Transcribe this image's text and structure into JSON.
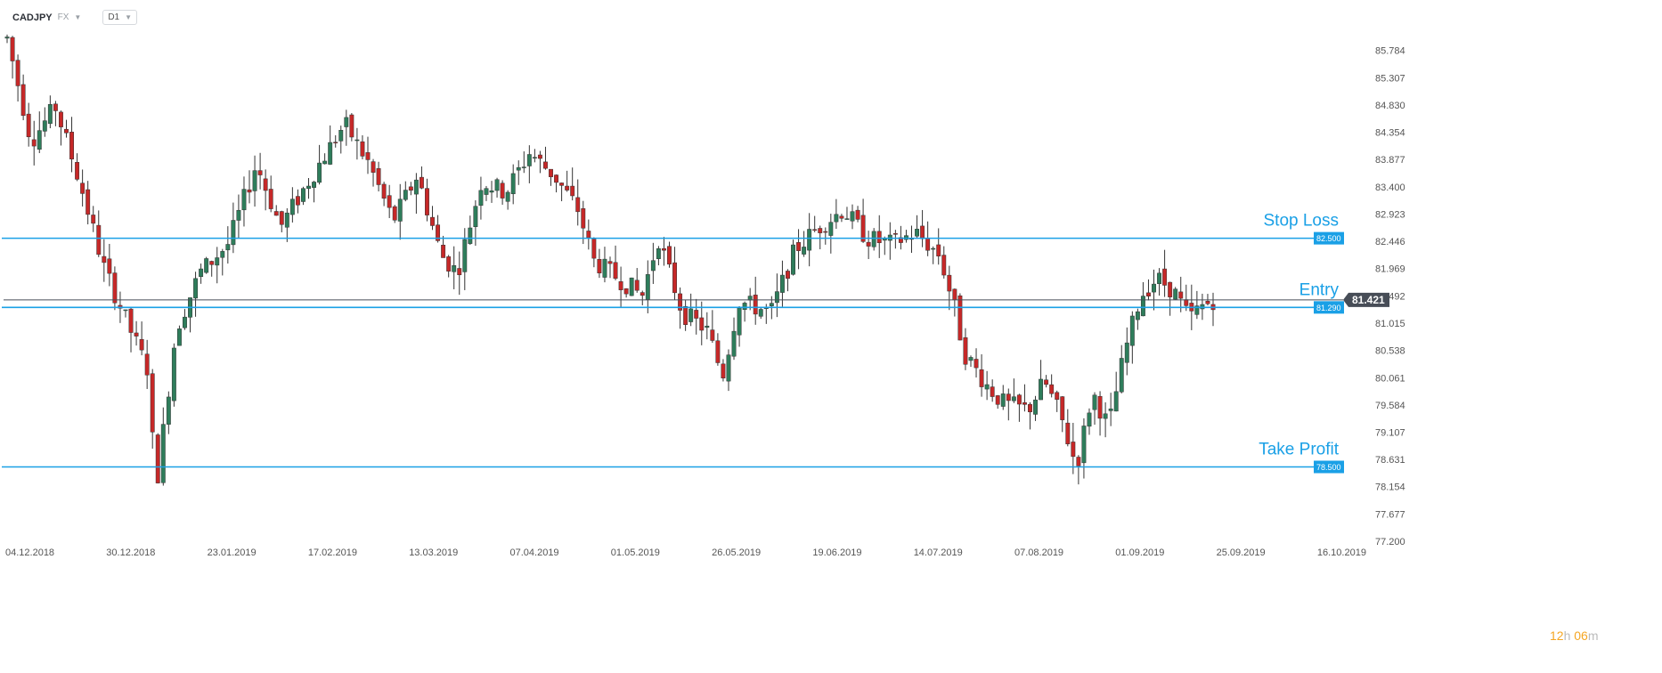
{
  "header": {
    "symbol": "CADJPY",
    "market": "FX",
    "timeframe": "D1"
  },
  "countdown": {
    "hours": "12",
    "hours_unit": "h",
    "minutes": "06",
    "minutes_unit": "m"
  },
  "colors": {
    "bull": "#2e7d5b",
    "bear": "#c62828",
    "level_line": "#1aa0e6",
    "price_tag": "#474d57",
    "axis_text": "#555555"
  },
  "chart_data": {
    "type": "candlestick",
    "title": "",
    "ylim": [
      77.2,
      86.2
    ],
    "y_ticks": [
      "85.784",
      "85.307",
      "84.830",
      "84.354",
      "83.877",
      "83.400",
      "82.923",
      "82.446",
      "81.969",
      "81.492",
      "81.015",
      "80.538",
      "80.061",
      "79.584",
      "79.107",
      "78.631",
      "78.154",
      "77.677",
      "77.200"
    ],
    "x_ticks": [
      "04.12.2018",
      "30.12.2018",
      "23.01.2019",
      "17.02.2019",
      "13.03.2019",
      "07.04.2019",
      "01.05.2019",
      "26.05.2019",
      "19.06.2019",
      "14.07.2019",
      "07.08.2019",
      "01.09.2019",
      "25.09.2019",
      "16.10.2019"
    ],
    "current_price": "81.421",
    "levels": [
      {
        "label": "Stop Loss",
        "price": 82.5,
        "tag": "82.500"
      },
      {
        "label": "Entry",
        "price": 81.29,
        "tag": "81.290"
      },
      {
        "label": "Take Profit",
        "price": 78.5,
        "tag": "78.500"
      }
    ],
    "x_range": [
      "04.12.2018",
      "16.10.2019"
    ],
    "candle_count": 225,
    "price_path": [
      [
        0,
        86.0
      ],
      [
        6,
        84.2
      ],
      [
        12,
        84.8
      ],
      [
        18,
        83.5
      ],
      [
        24,
        82.0
      ],
      [
        30,
        81.0
      ],
      [
        35,
        80.2
      ],
      [
        37,
        78.1
      ],
      [
        42,
        80.9
      ],
      [
        48,
        81.9
      ],
      [
        55,
        82.4
      ],
      [
        62,
        83.8
      ],
      [
        68,
        82.7
      ],
      [
        75,
        83.5
      ],
      [
        84,
        84.5
      ],
      [
        90,
        83.8
      ],
      [
        96,
        82.8
      ],
      [
        102,
        83.6
      ],
      [
        108,
        82.2
      ],
      [
        112,
        81.9
      ],
      [
        118,
        83.5
      ],
      [
        124,
        83.3
      ],
      [
        130,
        84.0
      ],
      [
        136,
        83.6
      ],
      [
        142,
        83.0
      ],
      [
        146,
        82.1
      ],
      [
        152,
        81.8
      ],
      [
        158,
        81.5
      ],
      [
        162,
        82.5
      ],
      [
        168,
        81.2
      ],
      [
        174,
        80.9
      ],
      [
        178,
        80.1
      ],
      [
        182,
        81.4
      ],
      [
        186,
        81.3
      ],
      [
        190,
        81.2
      ],
      [
        196,
        82.3
      ],
      [
        202,
        82.7
      ],
      [
        208,
        83.0
      ],
      [
        214,
        82.5
      ],
      [
        220,
        82.4
      ],
      [
        226,
        82.6
      ],
      [
        232,
        82.2
      ],
      [
        236,
        81.2
      ],
      [
        238,
        80.5
      ],
      [
        244,
        79.9
      ],
      [
        248,
        79.6
      ],
      [
        254,
        79.5
      ],
      [
        258,
        80.0
      ],
      [
        262,
        79.4
      ],
      [
        266,
        78.5
      ],
      [
        270,
        79.8
      ],
      [
        274,
        79.2
      ],
      [
        278,
        80.5
      ],
      [
        282,
        81.5
      ],
      [
        286,
        81.8
      ],
      [
        290,
        81.6
      ],
      [
        294,
        81.1
      ],
      [
        297,
        81.3
      ],
      [
        300,
        81.421
      ]
    ]
  }
}
